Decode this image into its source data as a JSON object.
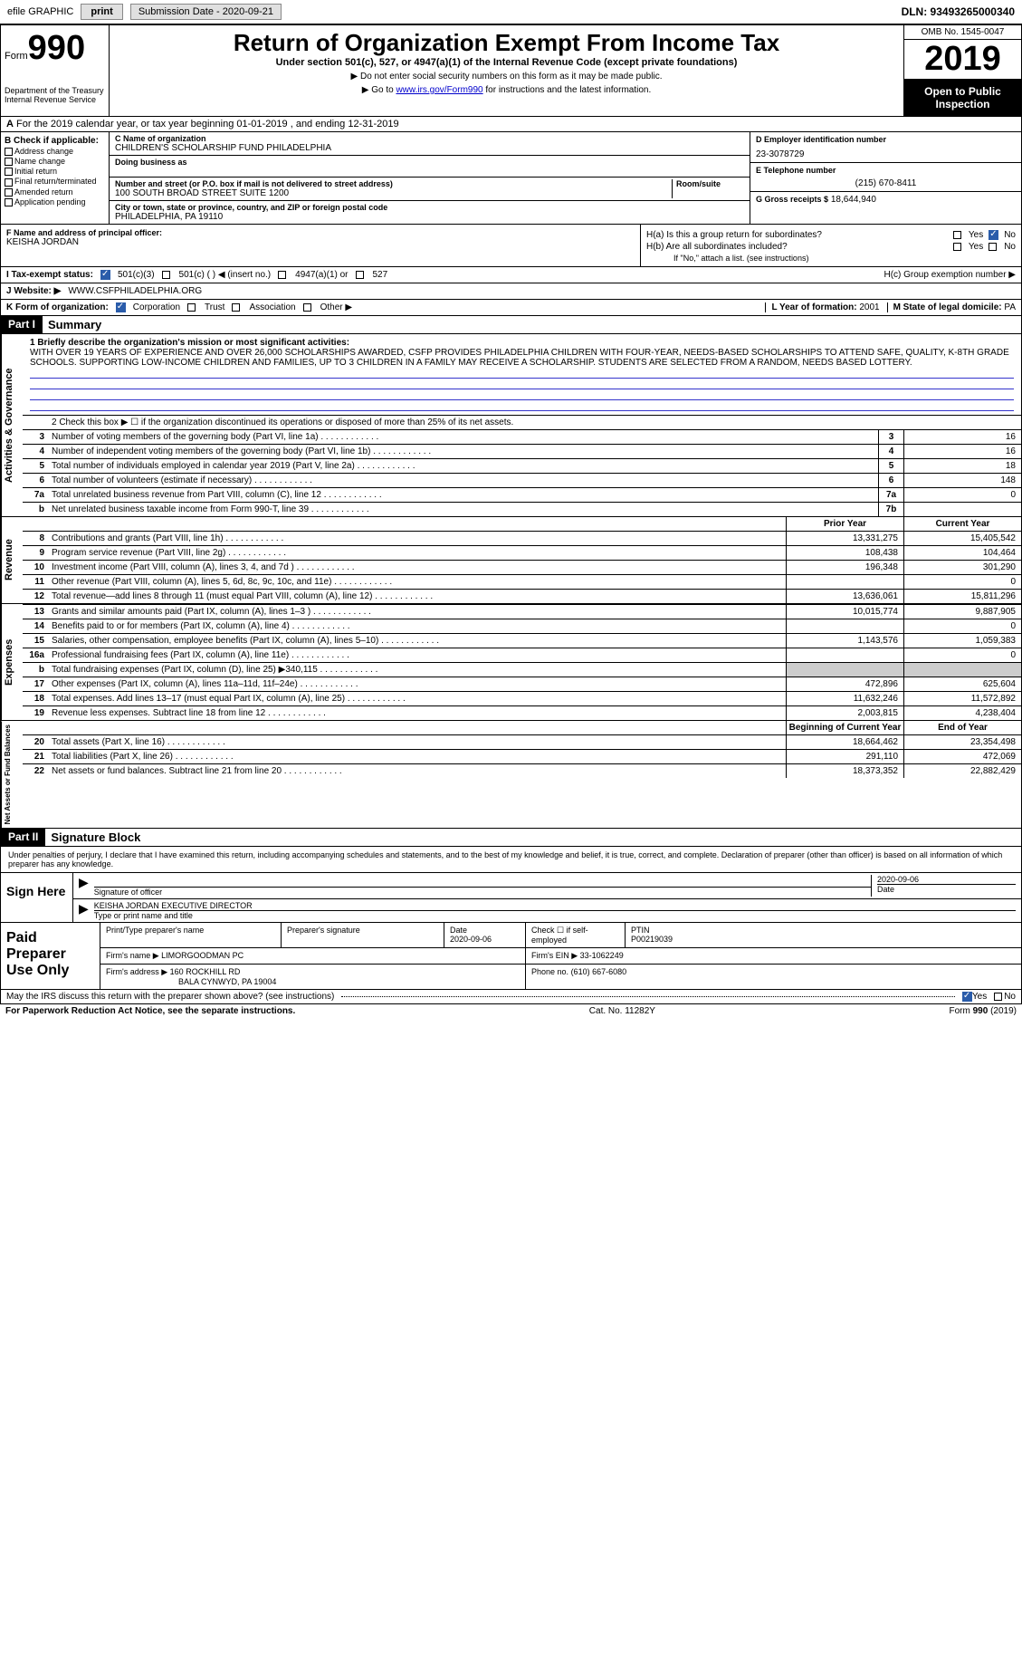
{
  "topbar": {
    "efile": "efile GRAPHIC",
    "print": "print",
    "submission_label": "Submission Date - 2020-09-21",
    "dln": "DLN: 93493265000340"
  },
  "header": {
    "form_prefix": "Form",
    "form_num": "990",
    "title": "Return of Organization Exempt From Income Tax",
    "subtitle": "Under section 501(c), 527, or 4947(a)(1) of the Internal Revenue Code (except private foundations)",
    "note1": "▶ Do not enter social security numbers on this form as it may be made public.",
    "note2_pre": "▶ Go to ",
    "note2_link": "www.irs.gov/Form990",
    "note2_post": " for instructions and the latest information.",
    "dept": "Department of the Treasury\nInternal Revenue Service",
    "omb": "OMB No. 1545-0047",
    "year": "2019",
    "inspection": "Open to Public Inspection"
  },
  "line_a": "For the 2019 calendar year, or tax year beginning 01-01-2019    , and ending 12-31-2019",
  "section_b": {
    "header": "B Check if applicable:",
    "items": [
      "Address change",
      "Name change",
      "Initial return",
      "Final return/terminated",
      "Amended return",
      "Application pending"
    ]
  },
  "section_c": {
    "name_lbl": "C Name of organization",
    "name": "CHILDREN'S SCHOLARSHIP FUND PHILADELPHIA",
    "dba_lbl": "Doing business as",
    "addr_lbl": "Number and street (or P.O. box if mail is not delivered to street address)",
    "room_lbl": "Room/suite",
    "addr": "100 SOUTH BROAD STREET SUITE 1200",
    "city_lbl": "City or town, state or province, country, and ZIP or foreign postal code",
    "city": "PHILADELPHIA, PA  19110"
  },
  "section_d": {
    "lbl": "D Employer identification number",
    "val": "23-3078729"
  },
  "section_e": {
    "lbl": "E Telephone number",
    "val": "(215) 670-8411"
  },
  "section_g": {
    "lbl": "G Gross receipts $",
    "val": "18,644,940"
  },
  "section_f": {
    "lbl": "F  Name and address of principal officer:",
    "val": "KEISHA JORDAN"
  },
  "section_h": {
    "ha": "H(a)  Is this a group return for subordinates?",
    "hb": "H(b)  Are all subordinates included?",
    "hb_note": "If \"No,\" attach a list. (see instructions)",
    "hc": "H(c)  Group exemption number ▶",
    "yes": "Yes",
    "no": "No"
  },
  "section_i": {
    "lbl": "I  Tax-exempt status:",
    "opts": [
      "501(c)(3)",
      "501(c) (  ) ◀ (insert no.)",
      "4947(a)(1) or",
      "527"
    ]
  },
  "section_j": {
    "lbl": "J  Website: ▶",
    "val": "WWW.CSFPHILADELPHIA.ORG"
  },
  "section_k": {
    "lbl": "K Form of organization:",
    "opts": [
      "Corporation",
      "Trust",
      "Association",
      "Other ▶"
    ]
  },
  "section_l": {
    "lbl": "L Year of formation:",
    "val": "2001"
  },
  "section_m": {
    "lbl": "M State of legal domicile:",
    "val": "PA"
  },
  "part1": {
    "hdr": "Part I",
    "title": "Summary",
    "line1_lbl": "1  Briefly describe the organization's mission or most significant activities:",
    "mission": "WITH OVER 19 YEARS OF EXPERIENCE AND OVER 26,000 SCHOLARSHIPS AWARDED, CSFP PROVIDES PHILADELPHIA CHILDREN WITH FOUR-YEAR, NEEDS-BASED SCHOLARSHIPS TO ATTEND SAFE, QUALITY, K-8TH GRADE SCHOOLS. SUPPORTING LOW-INCOME CHILDREN AND FAMILIES, UP TO 3 CHILDREN IN A FAMILY MAY RECEIVE A SCHOLARSHIP. STUDENTS ARE SELECTED FROM A RANDOM, NEEDS BASED LOTTERY.",
    "line2": "2   Check this box ▶ ☐ if the organization discontinued its operations or disposed of more than 25% of its net assets.",
    "rows_gov": [
      {
        "n": "3",
        "desc": "Number of voting members of the governing body (Part VI, line 1a)",
        "box": "3",
        "val": "16"
      },
      {
        "n": "4",
        "desc": "Number of independent voting members of the governing body (Part VI, line 1b)",
        "box": "4",
        "val": "16"
      },
      {
        "n": "5",
        "desc": "Total number of individuals employed in calendar year 2019 (Part V, line 2a)",
        "box": "5",
        "val": "18"
      },
      {
        "n": "6",
        "desc": "Total number of volunteers (estimate if necessary)",
        "box": "6",
        "val": "148"
      },
      {
        "n": "7a",
        "desc": "Total unrelated business revenue from Part VIII, column (C), line 12",
        "box": "7a",
        "val": "0"
      },
      {
        "n": "b",
        "desc": "Net unrelated business taxable income from Form 990-T, line 39",
        "box": "7b",
        "val": ""
      }
    ],
    "col_hdrs": {
      "prior": "Prior Year",
      "current": "Current Year"
    },
    "rows_rev": [
      {
        "n": "8",
        "desc": "Contributions and grants (Part VIII, line 1h)",
        "p": "13,331,275",
        "c": "15,405,542"
      },
      {
        "n": "9",
        "desc": "Program service revenue (Part VIII, line 2g)",
        "p": "108,438",
        "c": "104,464"
      },
      {
        "n": "10",
        "desc": "Investment income (Part VIII, column (A), lines 3, 4, and 7d )",
        "p": "196,348",
        "c": "301,290"
      },
      {
        "n": "11",
        "desc": "Other revenue (Part VIII, column (A), lines 5, 6d, 8c, 9c, 10c, and 11e)",
        "p": "",
        "c": "0"
      },
      {
        "n": "12",
        "desc": "Total revenue—add lines 8 through 11 (must equal Part VIII, column (A), line 12)",
        "p": "13,636,061",
        "c": "15,811,296"
      }
    ],
    "rows_exp": [
      {
        "n": "13",
        "desc": "Grants and similar amounts paid (Part IX, column (A), lines 1–3 )",
        "p": "10,015,774",
        "c": "9,887,905"
      },
      {
        "n": "14",
        "desc": "Benefits paid to or for members (Part IX, column (A), line 4)",
        "p": "",
        "c": "0"
      },
      {
        "n": "15",
        "desc": "Salaries, other compensation, employee benefits (Part IX, column (A), lines 5–10)",
        "p": "1,143,576",
        "c": "1,059,383"
      },
      {
        "n": "16a",
        "desc": "Professional fundraising fees (Part IX, column (A), line 11e)",
        "p": "",
        "c": "0"
      },
      {
        "n": "b",
        "desc": "Total fundraising expenses (Part IX, column (D), line 25) ▶340,115",
        "p": "gray",
        "c": "gray"
      },
      {
        "n": "17",
        "desc": "Other expenses (Part IX, column (A), lines 11a–11d, 11f–24e)",
        "p": "472,896",
        "c": "625,604"
      },
      {
        "n": "18",
        "desc": "Total expenses. Add lines 13–17 (must equal Part IX, column (A), line 25)",
        "p": "11,632,246",
        "c": "11,572,892"
      },
      {
        "n": "19",
        "desc": "Revenue less expenses. Subtract line 18 from line 12",
        "p": "2,003,815",
        "c": "4,238,404"
      }
    ],
    "net_hdrs": {
      "beg": "Beginning of Current Year",
      "end": "End of Year"
    },
    "rows_net": [
      {
        "n": "20",
        "desc": "Total assets (Part X, line 16)",
        "p": "18,664,462",
        "c": "23,354,498"
      },
      {
        "n": "21",
        "desc": "Total liabilities (Part X, line 26)",
        "p": "291,110",
        "c": "472,069"
      },
      {
        "n": "22",
        "desc": "Net assets or fund balances. Subtract line 21 from line 20",
        "p": "18,373,352",
        "c": "22,882,429"
      }
    ],
    "vert_labels": {
      "gov": "Activities & Governance",
      "rev": "Revenue",
      "exp": "Expenses",
      "net": "Net Assets or Fund Balances"
    }
  },
  "part2": {
    "hdr": "Part II",
    "title": "Signature Block",
    "decl": "Under penalties of perjury, I declare that I have examined this return, including accompanying schedules and statements, and to the best of my knowledge and belief, it is true, correct, and complete. Declaration of preparer (other than officer) is based on all information of which preparer has any knowledge.",
    "sign_here": "Sign Here",
    "sig_officer": "Signature of officer",
    "sig_date": "2020-09-06",
    "date_lbl": "Date",
    "officer_name": "KEISHA JORDAN  EXECUTIVE DIRECTOR",
    "type_name": "Type or print name and title",
    "paid": "Paid Preparer Use Only",
    "print_name_lbl": "Print/Type preparer's name",
    "prep_sig_lbl": "Preparer's signature",
    "prep_date_lbl": "Date",
    "prep_date": "2020-09-06",
    "check_self": "Check ☐ if self-employed",
    "ptin_lbl": "PTIN",
    "ptin": "P00219039",
    "firm_name_lbl": "Firm's name    ▶",
    "firm_name": "LIMORGOODMAN PC",
    "firm_ein_lbl": "Firm's EIN ▶",
    "firm_ein": "33-1062249",
    "firm_addr_lbl": "Firm's address ▶",
    "firm_addr1": "160 ROCKHILL RD",
    "firm_addr2": "BALA CYNWYD, PA  19004",
    "phone_lbl": "Phone no.",
    "phone": "(610) 667-6080"
  },
  "footer": {
    "discuss": "May the IRS discuss this return with the preparer shown above? (see instructions)",
    "yes": "Yes",
    "no": "No",
    "paperwork": "For Paperwork Reduction Act Notice, see the separate instructions.",
    "cat": "Cat. No. 11282Y",
    "form": "Form 990 (2019)"
  }
}
